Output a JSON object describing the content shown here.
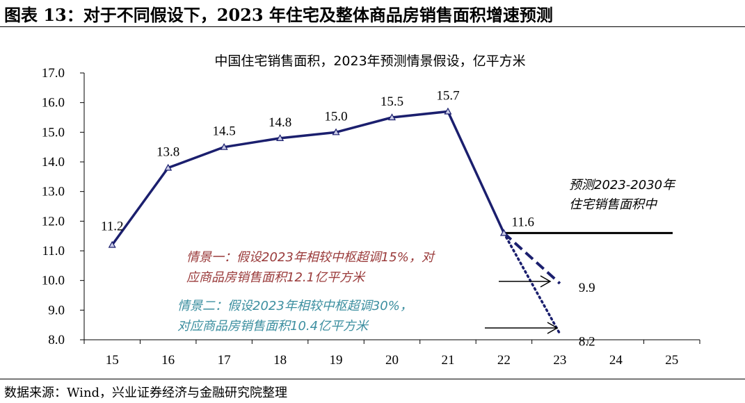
{
  "page": {
    "figure_title": "图表 13：对于不同假设下，2023 年住宅及整体商品房销售面积增速预测",
    "source": "数据来源：Wind，兴业证券经济与金融研究院整理"
  },
  "annotations": {
    "forecast_line1": "预测2023-2030年",
    "forecast_line2": "住宅销售面积中",
    "scenario1_line1": "情景一：假设2023年相较中枢超调15%，对",
    "scenario1_line2": "应商品房销售面积12.1亿平方米",
    "scenario2_line1": "情景二：假设2023年相较中枢超调30%，",
    "scenario2_line2": "对应商品房销售面积10.4亿平方米"
  },
  "colors": {
    "main_series": "#1b1f6e",
    "baseline": "#000000",
    "scenario1_text": "#9a3b3b",
    "scenario2_text": "#3d8fa0"
  },
  "chart_data": {
    "type": "line",
    "title": "中国住宅销售面积，2023年预测情景假设，亿平方米",
    "xlabel": "",
    "ylabel": "",
    "categories": [
      "15",
      "16",
      "17",
      "18",
      "19",
      "20",
      "21",
      "22",
      "23",
      "24",
      "25"
    ],
    "ylim": [
      8.0,
      17.0
    ],
    "yticks": [
      "8.0",
      "9.0",
      "10.0",
      "11.0",
      "12.0",
      "13.0",
      "14.0",
      "15.0",
      "16.0",
      "17.0"
    ],
    "grid": false,
    "series": [
      {
        "values": [
          11.2,
          13.8,
          14.5,
          14.8,
          15.0,
          15.5,
          15.7,
          11.6,
          null,
          null,
          null
        ],
        "labels": [
          "11.2",
          "13.8",
          "14.5",
          "14.8",
          "15.0",
          "15.5",
          "15.7",
          "11.6",
          "",
          "",
          ""
        ],
        "style": "solid",
        "marker": "triangle"
      },
      {
        "values": [
          null,
          null,
          null,
          null,
          null,
          null,
          null,
          11.6,
          11.6,
          11.6,
          11.6
        ],
        "style": "solid-black"
      },
      {
        "values": [
          null,
          null,
          null,
          null,
          null,
          null,
          null,
          11.6,
          9.9,
          null,
          null
        ],
        "labels": [
          "",
          "",
          "",
          "",
          "",
          "",
          "",
          "",
          "9.9",
          "",
          ""
        ],
        "style": "dashed"
      },
      {
        "values": [
          null,
          null,
          null,
          null,
          null,
          null,
          null,
          11.6,
          8.2,
          null,
          null
        ],
        "labels": [
          "",
          "",
          "",
          "",
          "",
          "",
          "",
          "",
          "8.2",
          "",
          ""
        ],
        "style": "dotted"
      }
    ]
  }
}
